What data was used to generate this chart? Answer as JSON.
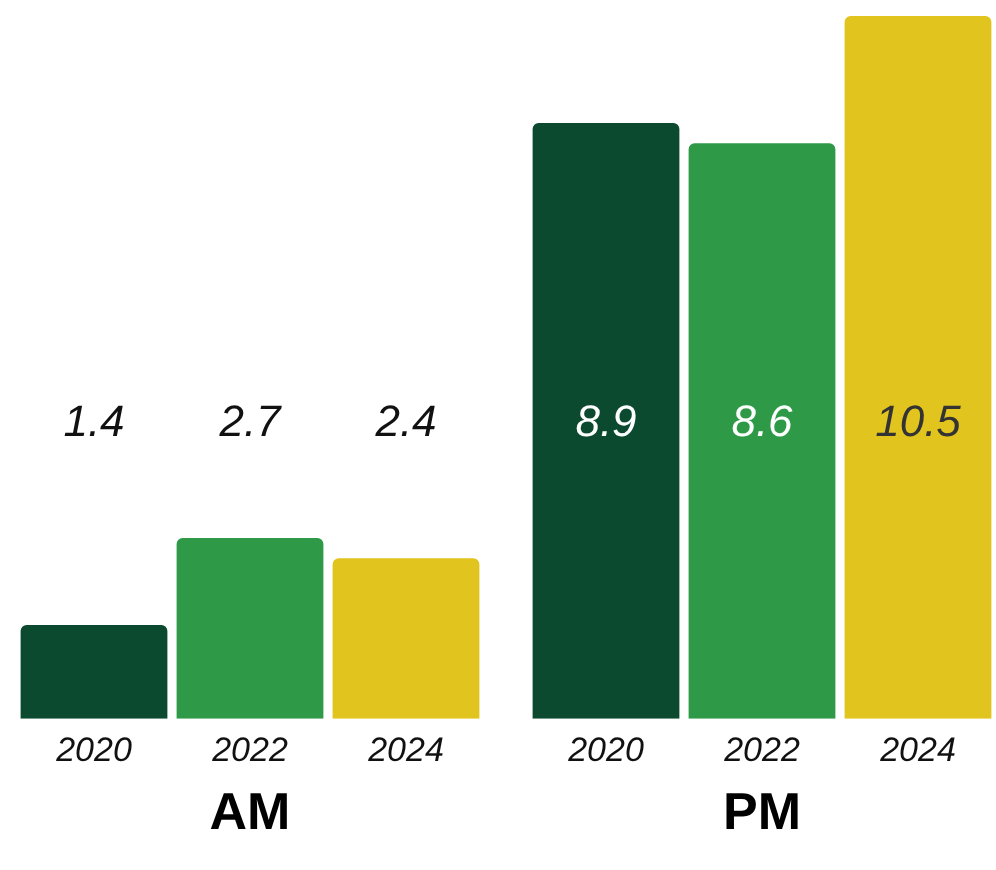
{
  "chart_data": [
    {
      "type": "bar",
      "xlabel": "AM",
      "categories": [
        "2020",
        "2022",
        "2024"
      ],
      "values": [
        1.4,
        2.7,
        2.4
      ],
      "colors": [
        "#0b4a2f",
        "#2e9a48",
        "#e2c41f"
      ],
      "data_labels": true,
      "tick_labels": "x",
      "grid": false,
      "legend": false
    },
    {
      "type": "bar",
      "xlabel": "PM",
      "categories": [
        "2020",
        "2022",
        "2024"
      ],
      "values": [
        8.9,
        8.6,
        10.5
      ],
      "colors": [
        "#0b4a2f",
        "#2e9a48",
        "#e2c41f"
      ],
      "data_labels": true,
      "tick_labels": "x",
      "grid": false,
      "legend": false
    }
  ]
}
